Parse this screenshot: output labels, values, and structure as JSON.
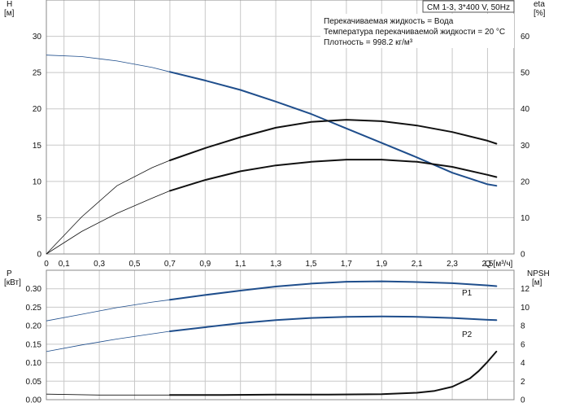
{
  "chart_data": [
    {
      "type": "line",
      "title": "CM 1-3, 3*400 V, 50Hz",
      "notes": [
        "Перекачиваемая жидкость = Вода",
        "Температура перекачиваемой жидкости = 20 °C",
        "Плотность = 998.2 кг/м³"
      ],
      "xlabel": "Q [м³/ч]",
      "xlim": [
        0,
        2.65
      ],
      "xticks": [
        "0",
        "0,1",
        "0,3",
        "0,5",
        "0,7",
        "0,9",
        "1,1",
        "1,3",
        "1,5",
        "1,7",
        "1,9",
        "2,1",
        "2,3",
        "2,5"
      ],
      "xtick_values": [
        0,
        0.1,
        0.3,
        0.5,
        0.7,
        0.9,
        1.1,
        1.3,
        1.5,
        1.7,
        1.9,
        2.1,
        2.3,
        2.5
      ],
      "y_left": {
        "label_top": "H",
        "label_unit": "[м]",
        "ylim": [
          0,
          35
        ],
        "ticks": [
          "0",
          "5",
          "10",
          "15",
          "20",
          "25",
          "30"
        ],
        "tick_values": [
          0,
          5,
          10,
          15,
          20,
          25,
          30
        ]
      },
      "y_right": {
        "label_top": "eta",
        "label_unit": "[%]",
        "ylim": [
          0,
          70
        ],
        "ticks": [
          "0",
          "10",
          "20",
          "30",
          "40",
          "50",
          "60"
        ],
        "tick_values": [
          0,
          10,
          20,
          30,
          40,
          50,
          60
        ]
      },
      "grid": true,
      "series": [
        {
          "name": "",
          "axis": "left",
          "color": "#1f4e8c",
          "x": [
            0,
            0.2,
            0.4,
            0.6,
            0.7,
            0.9,
            1.1,
            1.3,
            1.5,
            1.7,
            1.9,
            2.1,
            2.3,
            2.5,
            2.55
          ],
          "y": [
            27.4,
            27.2,
            26.6,
            25.7,
            25.1,
            23.9,
            22.6,
            21.0,
            19.3,
            17.3,
            15.3,
            13.3,
            11.2,
            9.6,
            9.4
          ]
        },
        {
          "name": "",
          "axis": "left",
          "color": "#111111",
          "x": [
            0,
            0.2,
            0.4,
            0.6,
            0.7,
            0.9,
            1.1,
            1.3,
            1.5,
            1.7,
            1.9,
            2.1,
            2.3,
            2.5,
            2.55
          ],
          "y": [
            0,
            3.1,
            5.6,
            7.7,
            8.7,
            10.2,
            11.4,
            12.2,
            12.7,
            13.0,
            13.0,
            12.7,
            12.0,
            10.9,
            10.6
          ]
        },
        {
          "name": "",
          "axis": "right",
          "color": "#111111",
          "x": [
            0,
            0.2,
            0.4,
            0.6,
            0.7,
            0.9,
            1.1,
            1.3,
            1.5,
            1.7,
            1.9,
            2.1,
            2.3,
            2.5,
            2.55
          ],
          "y": [
            0,
            10.2,
            18.8,
            23.8,
            25.8,
            29.2,
            32.2,
            34.8,
            36.4,
            37.0,
            36.6,
            35.4,
            33.6,
            31.2,
            30.4
          ]
        }
      ]
    },
    {
      "type": "line",
      "xlim": [
        0,
        2.65
      ],
      "xticks": [
        "0",
        "0,1",
        "0,3",
        "0,5",
        "0,7",
        "0,9",
        "1,1",
        "1,3",
        "1,5",
        "1,7",
        "1,9",
        "2,1",
        "2,3",
        "2,5"
      ],
      "xtick_values": [
        0,
        0.1,
        0.3,
        0.5,
        0.7,
        0.9,
        1.1,
        1.3,
        1.5,
        1.7,
        1.9,
        2.1,
        2.3,
        2.5
      ],
      "y_left": {
        "label_top": "P",
        "label_unit": "[кВт]",
        "ylim": [
          0,
          0.35
        ],
        "ticks": [
          "0.00",
          "0.05",
          "0.10",
          "0.15",
          "0.20",
          "0.25",
          "0.30"
        ],
        "tick_values": [
          0,
          0.05,
          0.1,
          0.15,
          0.2,
          0.25,
          0.3
        ]
      },
      "y_right": {
        "label_top": "NPSH",
        "label_unit": "[м]",
        "ylim": [
          0,
          14
        ],
        "ticks": [
          "0",
          "2",
          "4",
          "6",
          "8",
          "10",
          "12"
        ],
        "tick_values": [
          0,
          2,
          4,
          6,
          8,
          10,
          12
        ]
      },
      "grid": true,
      "series": [
        {
          "name": "P1",
          "axis": "left",
          "color": "#1f4e8c",
          "x": [
            0,
            0.2,
            0.4,
            0.6,
            0.7,
            0.9,
            1.1,
            1.3,
            1.5,
            1.7,
            1.9,
            2.1,
            2.3,
            2.5,
            2.55
          ],
          "y": [
            0.213,
            0.231,
            0.249,
            0.264,
            0.27,
            0.283,
            0.295,
            0.306,
            0.314,
            0.319,
            0.32,
            0.318,
            0.315,
            0.309,
            0.307
          ]
        },
        {
          "name": "P2",
          "axis": "left",
          "color": "#1f4e8c",
          "x": [
            0,
            0.2,
            0.4,
            0.6,
            0.7,
            0.9,
            1.1,
            1.3,
            1.5,
            1.7,
            1.9,
            2.1,
            2.3,
            2.5,
            2.55
          ],
          "y": [
            0.13,
            0.148,
            0.164,
            0.178,
            0.185,
            0.196,
            0.207,
            0.215,
            0.221,
            0.224,
            0.225,
            0.224,
            0.221,
            0.216,
            0.215
          ]
        },
        {
          "name": "",
          "axis": "right",
          "color": "#111111",
          "x": [
            0,
            0.3,
            0.7,
            1.0,
            1.3,
            1.6,
            1.9,
            2.1,
            2.2,
            2.3,
            2.4,
            2.45,
            2.5,
            2.55
          ],
          "y": [
            0.6,
            0.5,
            0.5,
            0.5,
            0.55,
            0.55,
            0.6,
            0.75,
            0.95,
            1.4,
            2.3,
            3.1,
            4.1,
            5.2
          ]
        }
      ]
    }
  ]
}
